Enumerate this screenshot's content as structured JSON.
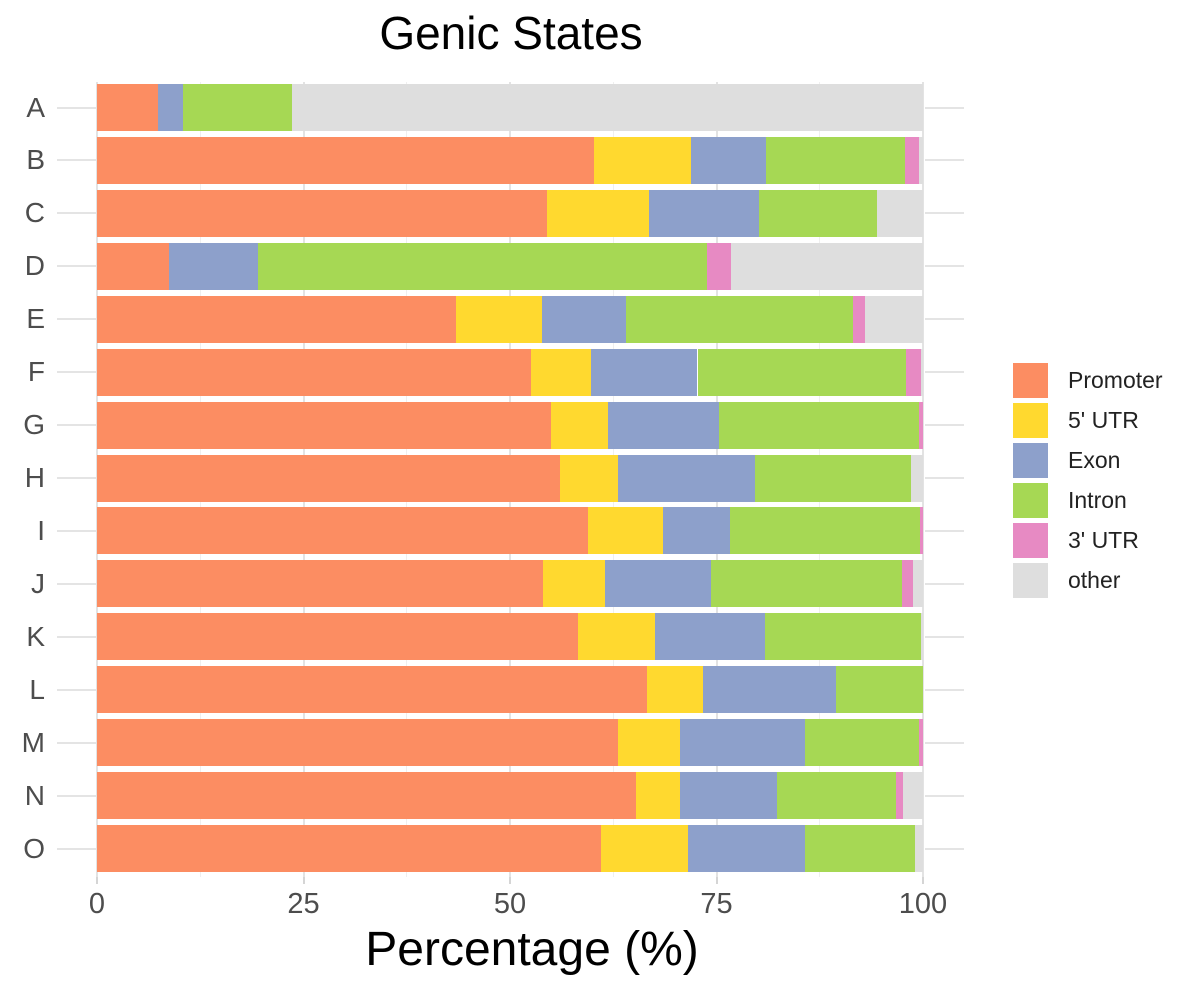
{
  "chart_data": {
    "type": "bar",
    "orientation": "horizontal",
    "stacked": true,
    "title": "Genic States",
    "xlabel": "Percentage (%)",
    "ylabel": "",
    "xlim": [
      0,
      100
    ],
    "xticks": [
      0,
      25,
      50,
      75,
      100
    ],
    "minor_gridlines": [
      12.5,
      37.5,
      62.5,
      87.5
    ],
    "grid": "on",
    "legend_position": "right",
    "categories": [
      "A",
      "B",
      "C",
      "D",
      "E",
      "F",
      "G",
      "H",
      "I",
      "J",
      "K",
      "L",
      "M",
      "N",
      "O"
    ],
    "series": [
      {
        "name": "Promoter",
        "color": "#FC8D62",
        "values": [
          7.4,
          60.2,
          54.5,
          8.7,
          43.5,
          52.6,
          55.0,
          56.1,
          59.4,
          54.0,
          58.2,
          66.6,
          63.1,
          65.2,
          61.0
        ]
      },
      {
        "name": "5' UTR",
        "color": "#FFD92F",
        "values": [
          0,
          11.7,
          12.3,
          0,
          10.4,
          7.2,
          6.9,
          7.0,
          9.1,
          7.5,
          9.3,
          6.8,
          7.5,
          5.4,
          10.5
        ]
      },
      {
        "name": "Exon",
        "color": "#8DA0CB",
        "values": [
          3.0,
          9.1,
          13.3,
          10.8,
          10.1,
          12.9,
          13.4,
          16.6,
          8.1,
          12.8,
          13.4,
          16.1,
          15.1,
          11.7,
          14.2
        ]
      },
      {
        "name": "Intron",
        "color": "#A6D854",
        "values": [
          13.2,
          16.8,
          14.3,
          54.3,
          27.5,
          25.2,
          24.2,
          18.9,
          23.0,
          23.1,
          18.8,
          10.5,
          13.8,
          14.4,
          13.3
        ]
      },
      {
        "name": "3' UTR",
        "color": "#E78AC3",
        "values": [
          0,
          1.7,
          0,
          2.9,
          1.5,
          1.8,
          0.5,
          0,
          0.4,
          1.4,
          0,
          0,
          0.5,
          0.9,
          0
        ]
      },
      {
        "name": "other",
        "color": "#DEDEDE",
        "values": [
          76.4,
          0.5,
          5.6,
          23.3,
          7.0,
          0.3,
          0,
          1.4,
          0,
          1.2,
          0.3,
          0,
          0,
          2.4,
          1.0
        ]
      }
    ]
  }
}
